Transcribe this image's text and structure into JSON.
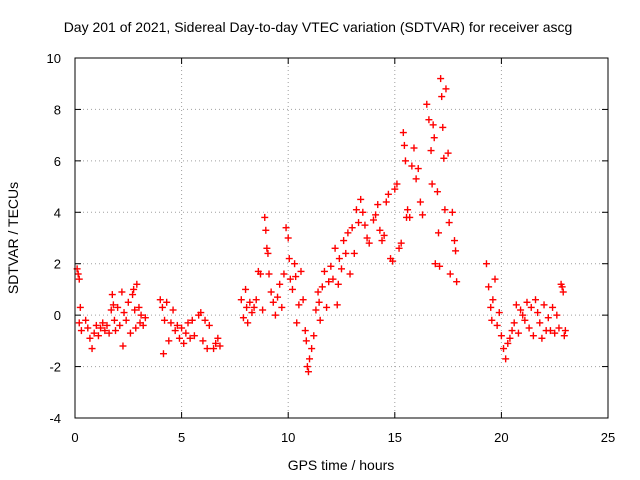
{
  "chart_data": {
    "type": "scatter",
    "title": "Day 201 of 2021, Sidereal Day-to-day VTEC variation (SDTVAR) for receiver ascg",
    "xlabel": "GPS time / hours",
    "ylabel": "SDTVAR / TECUs",
    "xlim": [
      0,
      25
    ],
    "ylim": [
      -4,
      10
    ],
    "xticks": [
      "0",
      "5",
      "10",
      "15",
      "20",
      "25"
    ],
    "yticks": [
      "-4",
      "-2",
      "0",
      "2",
      "4",
      "6",
      "8",
      "10"
    ],
    "grid": true,
    "marker": "plus",
    "color": "#ff0000",
    "series": [
      {
        "name": "SDTVAR",
        "points": [
          [
            0.1,
            1.8
          ],
          [
            0.15,
            1.6
          ],
          [
            0.2,
            1.4
          ],
          [
            0.25,
            0.3
          ],
          [
            0.2,
            -0.3
          ],
          [
            0.3,
            -0.6
          ],
          [
            0.5,
            -0.2
          ],
          [
            0.6,
            -0.5
          ],
          [
            0.7,
            -0.9
          ],
          [
            0.8,
            -1.3
          ],
          [
            0.9,
            -0.7
          ],
          [
            1.0,
            -0.4
          ],
          [
            1.1,
            -0.8
          ],
          [
            1.2,
            -0.5
          ],
          [
            1.3,
            -0.3
          ],
          [
            1.4,
            -0.6
          ],
          [
            1.5,
            -0.4
          ],
          [
            1.6,
            -0.7
          ],
          [
            1.7,
            0.2
          ],
          [
            1.75,
            0.8
          ],
          [
            1.8,
            0.4
          ],
          [
            1.85,
            -0.2
          ],
          [
            1.9,
            -0.6
          ],
          [
            2.0,
            0.3
          ],
          [
            2.1,
            -0.4
          ],
          [
            2.2,
            0.9
          ],
          [
            2.25,
            -1.2
          ],
          [
            2.3,
            0.1
          ],
          [
            2.4,
            -0.2
          ],
          [
            2.5,
            0.5
          ],
          [
            2.6,
            -0.7
          ],
          [
            2.7,
            0.8
          ],
          [
            2.75,
            1.0
          ],
          [
            2.8,
            0.2
          ],
          [
            2.85,
            -0.5
          ],
          [
            2.9,
            1.2
          ],
          [
            3.0,
            0.3
          ],
          [
            3.05,
            -0.3
          ],
          [
            3.1,
            0.0
          ],
          [
            3.2,
            -0.4
          ],
          [
            3.3,
            -0.1
          ],
          [
            4.0,
            0.6
          ],
          [
            4.1,
            0.3
          ],
          [
            4.15,
            -1.5
          ],
          [
            4.2,
            -0.2
          ],
          [
            4.3,
            0.5
          ],
          [
            4.4,
            -1.0
          ],
          [
            4.5,
            -0.3
          ],
          [
            4.6,
            0.2
          ],
          [
            4.7,
            -0.6
          ],
          [
            4.8,
            -0.4
          ],
          [
            4.9,
            -0.9
          ],
          [
            5.0,
            -0.5
          ],
          [
            5.1,
            -1.1
          ],
          [
            5.2,
            -0.7
          ],
          [
            5.3,
            -0.3
          ],
          [
            5.4,
            -0.9
          ],
          [
            5.5,
            -0.2
          ],
          [
            5.6,
            -0.8
          ],
          [
            5.8,
            0.0
          ],
          [
            5.9,
            0.1
          ],
          [
            6.0,
            -1.0
          ],
          [
            6.1,
            -0.2
          ],
          [
            6.2,
            -1.3
          ],
          [
            6.3,
            -0.4
          ],
          [
            6.5,
            -1.3
          ],
          [
            6.6,
            -1.1
          ],
          [
            6.7,
            -0.9
          ],
          [
            6.8,
            -1.2
          ],
          [
            7.8,
            0.6
          ],
          [
            7.9,
            -0.1
          ],
          [
            8.0,
            1.0
          ],
          [
            8.05,
            0.3
          ],
          [
            8.1,
            -0.3
          ],
          [
            8.2,
            0.5
          ],
          [
            8.3,
            0.1
          ],
          [
            8.4,
            0.3
          ],
          [
            8.5,
            0.6
          ],
          [
            8.6,
            1.7
          ],
          [
            8.7,
            1.6
          ],
          [
            8.8,
            0.2
          ],
          [
            8.9,
            3.8
          ],
          [
            8.95,
            3.3
          ],
          [
            9.0,
            2.6
          ],
          [
            9.05,
            2.4
          ],
          [
            9.1,
            1.6
          ],
          [
            9.2,
            0.9
          ],
          [
            9.3,
            0.5
          ],
          [
            9.4,
            0.0
          ],
          [
            9.5,
            0.7
          ],
          [
            9.6,
            1.2
          ],
          [
            9.7,
            0.3
          ],
          [
            9.8,
            1.6
          ],
          [
            9.9,
            3.4
          ],
          [
            10.0,
            3.0
          ],
          [
            10.05,
            2.2
          ],
          [
            10.1,
            1.4
          ],
          [
            10.2,
            1.0
          ],
          [
            10.3,
            2.0
          ],
          [
            10.35,
            1.5
          ],
          [
            10.4,
            -0.3
          ],
          [
            10.5,
            0.4
          ],
          [
            10.6,
            1.7
          ],
          [
            10.7,
            0.6
          ],
          [
            10.8,
            -0.6
          ],
          [
            10.85,
            -1.0
          ],
          [
            10.9,
            -2.0
          ],
          [
            10.95,
            -2.2
          ],
          [
            11.0,
            -1.7
          ],
          [
            11.1,
            -1.3
          ],
          [
            11.2,
            -0.8
          ],
          [
            11.3,
            0.2
          ],
          [
            11.4,
            0.9
          ],
          [
            11.45,
            0.5
          ],
          [
            11.5,
            -0.2
          ],
          [
            11.6,
            1.1
          ],
          [
            11.7,
            1.7
          ],
          [
            11.8,
            0.3
          ],
          [
            11.9,
            1.3
          ],
          [
            12.0,
            1.9
          ],
          [
            12.1,
            1.4
          ],
          [
            12.2,
            2.6
          ],
          [
            12.3,
            0.4
          ],
          [
            12.35,
            1.2
          ],
          [
            12.4,
            2.2
          ],
          [
            12.5,
            1.8
          ],
          [
            12.6,
            2.9
          ],
          [
            12.7,
            2.4
          ],
          [
            12.8,
            3.2
          ],
          [
            12.9,
            1.6
          ],
          [
            13.0,
            3.4
          ],
          [
            13.1,
            2.4
          ],
          [
            13.2,
            4.1
          ],
          [
            13.3,
            3.6
          ],
          [
            13.4,
            4.5
          ],
          [
            13.5,
            4.0
          ],
          [
            13.6,
            3.5
          ],
          [
            13.7,
            3.0
          ],
          [
            13.8,
            2.8
          ],
          [
            14.0,
            3.7
          ],
          [
            14.1,
            3.9
          ],
          [
            14.2,
            4.3
          ],
          [
            14.3,
            3.3
          ],
          [
            14.4,
            2.9
          ],
          [
            14.5,
            3.1
          ],
          [
            14.6,
            4.4
          ],
          [
            14.7,
            4.7
          ],
          [
            14.8,
            2.2
          ],
          [
            14.9,
            2.1
          ],
          [
            15.0,
            4.9
          ],
          [
            15.1,
            5.1
          ],
          [
            15.2,
            2.6
          ],
          [
            15.3,
            2.8
          ],
          [
            15.4,
            7.1
          ],
          [
            15.45,
            6.6
          ],
          [
            15.5,
            6.0
          ],
          [
            15.55,
            3.8
          ],
          [
            15.6,
            4.1
          ],
          [
            15.7,
            3.8
          ],
          [
            15.8,
            5.8
          ],
          [
            15.9,
            6.5
          ],
          [
            16.0,
            5.3
          ],
          [
            16.1,
            5.7
          ],
          [
            16.2,
            4.4
          ],
          [
            16.3,
            3.9
          ],
          [
            16.5,
            8.2
          ],
          [
            16.6,
            7.6
          ],
          [
            16.7,
            6.4
          ],
          [
            16.75,
            5.1
          ],
          [
            16.8,
            7.4
          ],
          [
            16.85,
            6.9
          ],
          [
            16.9,
            2.0
          ],
          [
            17.0,
            4.8
          ],
          [
            17.05,
            3.2
          ],
          [
            17.1,
            1.9
          ],
          [
            17.15,
            9.2
          ],
          [
            17.2,
            8.5
          ],
          [
            17.25,
            7.3
          ],
          [
            17.3,
            6.1
          ],
          [
            17.35,
            4.1
          ],
          [
            17.4,
            8.8
          ],
          [
            17.5,
            6.3
          ],
          [
            17.55,
            3.6
          ],
          [
            17.6,
            1.6
          ],
          [
            17.7,
            4.0
          ],
          [
            17.8,
            2.9
          ],
          [
            17.85,
            2.5
          ],
          [
            17.9,
            1.3
          ],
          [
            19.3,
            2.0
          ],
          [
            19.4,
            1.1
          ],
          [
            19.5,
            0.3
          ],
          [
            19.55,
            -0.2
          ],
          [
            19.6,
            0.6
          ],
          [
            19.7,
            1.4
          ],
          [
            19.8,
            -0.4
          ],
          [
            19.9,
            0.1
          ],
          [
            20.0,
            -0.8
          ],
          [
            20.1,
            -1.3
          ],
          [
            20.2,
            -1.7
          ],
          [
            20.3,
            -1.1
          ],
          [
            20.4,
            -0.9
          ],
          [
            20.5,
            -0.6
          ],
          [
            20.6,
            -0.3
          ],
          [
            20.7,
            0.4
          ],
          [
            20.8,
            -0.7
          ],
          [
            20.9,
            0.2
          ],
          [
            21.0,
            0.0
          ],
          [
            21.1,
            -0.2
          ],
          [
            21.2,
            0.5
          ],
          [
            21.3,
            -0.5
          ],
          [
            21.4,
            0.3
          ],
          [
            21.5,
            -0.8
          ],
          [
            21.6,
            0.6
          ],
          [
            21.7,
            0.1
          ],
          [
            21.8,
            -0.3
          ],
          [
            21.9,
            -0.9
          ],
          [
            22.0,
            0.4
          ],
          [
            22.1,
            -0.6
          ],
          [
            22.2,
            -0.1
          ],
          [
            22.3,
            -0.6
          ],
          [
            22.4,
            0.3
          ],
          [
            22.5,
            -0.7
          ],
          [
            22.6,
            0.0
          ],
          [
            22.7,
            -0.5
          ],
          [
            22.8,
            1.2
          ],
          [
            22.85,
            1.1
          ],
          [
            22.9,
            0.9
          ],
          [
            22.95,
            -0.8
          ],
          [
            23.0,
            -0.6
          ]
        ]
      }
    ]
  }
}
